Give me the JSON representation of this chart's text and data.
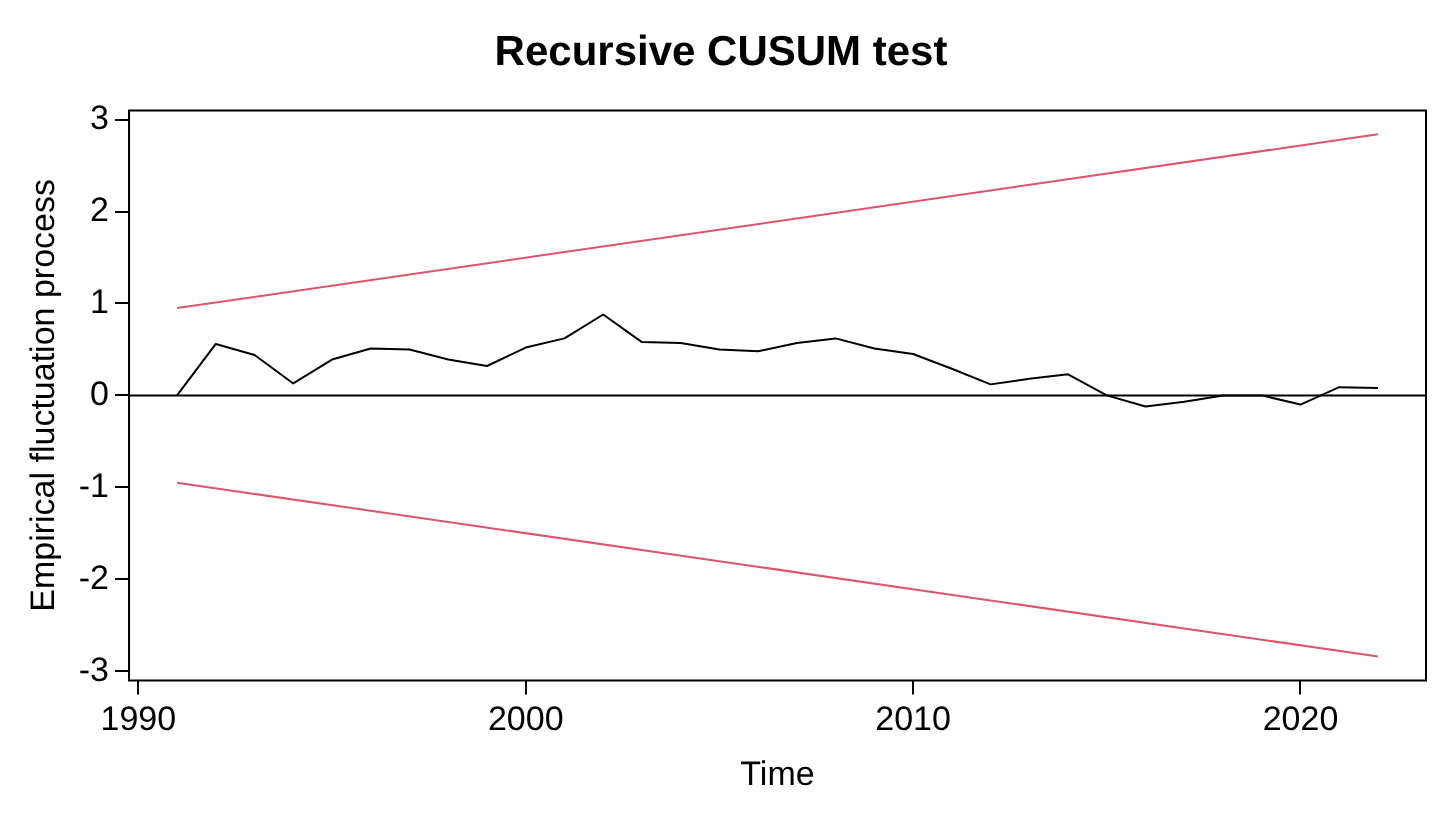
{
  "chart_data": {
    "type": "line",
    "title": "Recursive CUSUM test",
    "xlabel": "Time",
    "ylabel": "Empirical fluctuation process",
    "xlim": [
      1989.76,
      2023.24
    ],
    "ylim": [
      -3.1,
      3.1
    ],
    "xticks": [
      1990,
      2000,
      2010,
      2020
    ],
    "yticks": [
      -3,
      -2,
      -1,
      0,
      1,
      2,
      3
    ],
    "grid": false,
    "legend": false,
    "marker": "none",
    "line_style": "solid",
    "series": [
      {
        "color": "#000000",
        "x": [
          1991,
          1992,
          1993,
          1994,
          1995,
          1996,
          1997,
          1998,
          1999,
          2000,
          2001,
          2002,
          2003,
          2004,
          2005,
          2006,
          2007,
          2008,
          2009,
          2010,
          2011,
          2012,
          2013,
          2014,
          2015,
          2016,
          2017,
          2018,
          2019,
          2020,
          2021,
          2022
        ],
        "values": [
          0,
          0.56,
          0.44,
          0.13,
          0.39,
          0.51,
          0.5,
          0.39,
          0.32,
          0.52,
          0.62,
          0.88,
          0.58,
          0.57,
          0.5,
          0.48,
          0.57,
          0.62,
          0.51,
          0.45,
          0.29,
          0.12,
          0.18,
          0.23,
          0,
          -0.12,
          -0.07,
          0,
          0,
          -0.1,
          0.09,
          0.08
        ]
      },
      {
        "color": "#df536b",
        "x": [
          1991,
          2022
        ],
        "values": [
          0.95,
          2.84
        ]
      },
      {
        "color": "#df536b",
        "x": [
          1991,
          2022
        ],
        "values": [
          -0.95,
          -2.84
        ]
      }
    ],
    "ref_lines": [
      {
        "axis": "y",
        "value": 0,
        "color": "#000000"
      }
    ]
  }
}
